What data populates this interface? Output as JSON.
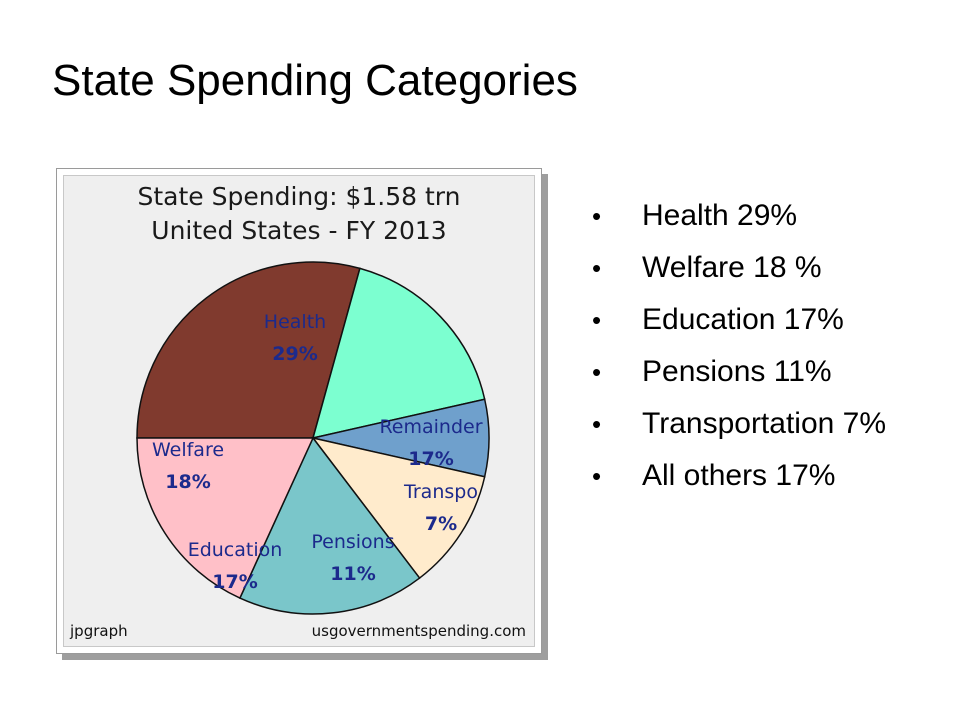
{
  "slide": {
    "title": "State Spending Categories"
  },
  "bullets": [
    {
      "text": "Health 29%"
    },
    {
      "text": "Welfare 18 %"
    },
    {
      "text": "Education 17%"
    },
    {
      "text": "Pensions 11%"
    },
    {
      "text": "Transportation 7%"
    },
    {
      "text": "All others 17%"
    }
  ],
  "chart_data": {
    "type": "pie",
    "title": "State Spending: $1.58 trn",
    "subtitle": "United States - FY 2013",
    "footer_left": "jpgraph",
    "footer_right": "usgovernmentspending.com",
    "start_angle_deg": 180,
    "direction": "clockwise",
    "slices": [
      {
        "label": "Health",
        "value": 29,
        "display": "29%",
        "color": "#803a2e"
      },
      {
        "label": "Remainder",
        "value": 17,
        "display": "17%",
        "color": "#7cffd0"
      },
      {
        "label": "Transpo",
        "value": 7,
        "display": "7%",
        "color": "#6fa0cc"
      },
      {
        "label": "Pensions",
        "value": 11,
        "display": "11%",
        "color": "#ffebcc"
      },
      {
        "label": "Education",
        "value": 17,
        "display": "17%",
        "color": "#7ac6ca"
      },
      {
        "label": "Welfare",
        "value": 18,
        "display": "18%",
        "color": "#ffc0c8"
      }
    ],
    "label_color": "#1c2a8c",
    "border_color": "#111111"
  }
}
